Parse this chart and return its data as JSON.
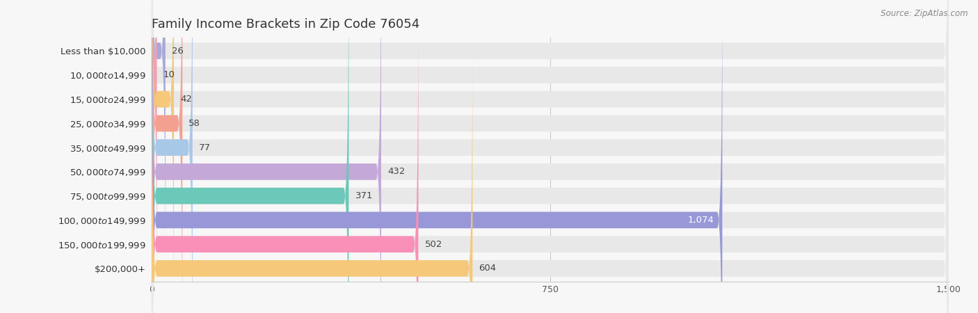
{
  "title": "Family Income Brackets in Zip Code 76054",
  "source": "Source: ZipAtlas.com",
  "categories": [
    "Less than $10,000",
    "$10,000 to $14,999",
    "$15,000 to $24,999",
    "$25,000 to $34,999",
    "$35,000 to $49,999",
    "$50,000 to $74,999",
    "$75,000 to $99,999",
    "$100,000 to $149,999",
    "$150,000 to $199,999",
    "$200,000+"
  ],
  "values": [
    26,
    10,
    42,
    58,
    77,
    432,
    371,
    1074,
    502,
    604
  ],
  "colors": [
    "#a8a8d8",
    "#f4a0b0",
    "#f5c87a",
    "#f4a090",
    "#a8c8e8",
    "#c4a8d8",
    "#6cc8b8",
    "#9898d8",
    "#f890b8",
    "#f5c87a"
  ],
  "xlim": [
    0,
    1500
  ],
  "xticks": [
    0,
    750,
    1500
  ],
  "background_color": "#f7f7f7",
  "bar_background_color": "#e8e8e8",
  "title_fontsize": 13,
  "label_fontsize": 9.5,
  "value_fontsize": 9.5
}
